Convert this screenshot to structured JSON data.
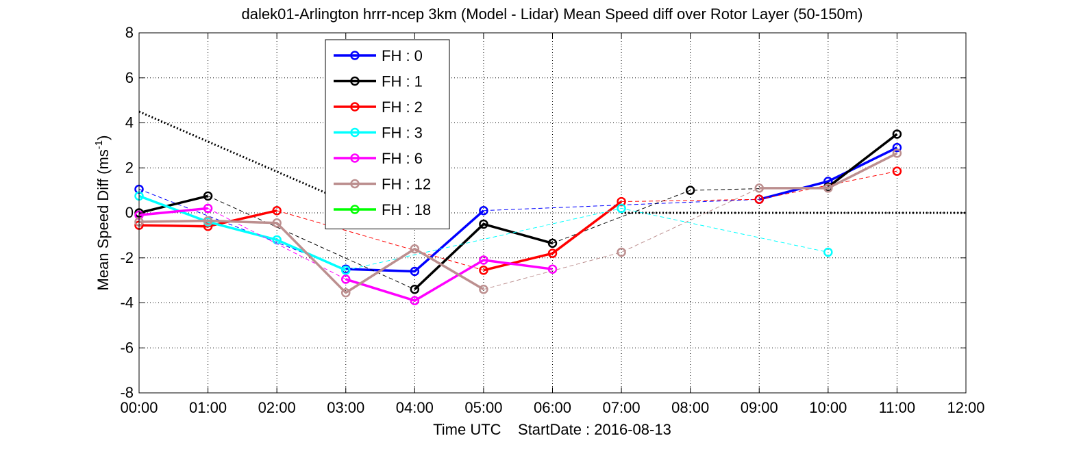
{
  "chart_data": {
    "type": "line",
    "title": "dalek01-Arlington hrrr-ncep 3km (Model - Lidar) Mean Speed diff over Rotor Layer (50-150m)",
    "xlabel": "Time UTC    StartDate : 2016-08-13",
    "ylabel": "Mean Speed Diff (ms",
    "ylabel_sup": "-1",
    "ylabel_close": ")",
    "xlim": [
      0,
      12
    ],
    "ylim": [
      -8,
      8
    ],
    "grid": true,
    "x_ticks": [
      0,
      1,
      2,
      3,
      4,
      5,
      6,
      7,
      8,
      9,
      10,
      11,
      12
    ],
    "x_tick_labels": [
      "00:00",
      "01:00",
      "02:00",
      "03:00",
      "04:00",
      "05:00",
      "06:00",
      "07:00",
      "08:00",
      "09:00",
      "10:00",
      "11:00",
      "12:00"
    ],
    "y_ticks": [
      -8,
      -6,
      -4,
      -2,
      0,
      2,
      4,
      6,
      8
    ],
    "y_tick_labels": [
      "-8",
      "-6",
      "-4",
      "-2",
      "0",
      "2",
      "4",
      "6",
      "8"
    ],
    "legend_position": "top-center",
    "reference_lines": [
      {
        "points": [
          [
            0,
            4.5
          ],
          [
            3.0,
            0.5
          ]
        ],
        "style": "dotted-thick",
        "color": "#000000"
      },
      {
        "points": [
          [
            7.0,
            0
          ],
          [
            12,
            0
          ]
        ],
        "style": "dotted-thick",
        "color": "#000000"
      }
    ],
    "series": [
      {
        "name": "FH : 0",
        "color": "#0000ff",
        "solid": [
          [
            [
              3,
              -2.5
            ],
            [
              4,
              -2.6
            ],
            [
              5,
              0.1
            ]
          ],
          [
            [
              9,
              0.6
            ],
            [
              10,
              1.4
            ],
            [
              11,
              2.9
            ]
          ]
        ],
        "dashed": [
          [
            [
              0,
              1.05
            ],
            [
              3,
              -2.5
            ]
          ],
          [
            [
              5,
              0.1
            ],
            [
              9,
              0.6
            ]
          ]
        ],
        "points": [
          [
            0,
            1.05
          ],
          [
            3,
            -2.5
          ],
          [
            4,
            -2.6
          ],
          [
            5,
            0.1
          ],
          [
            9,
            0.6
          ],
          [
            10,
            1.4
          ],
          [
            11,
            2.9
          ]
        ]
      },
      {
        "name": "FH : 1",
        "color": "#000000",
        "solid": [
          [
            [
              0,
              0.0
            ],
            [
              1,
              0.75
            ]
          ],
          [
            [
              4,
              -3.4
            ],
            [
              5,
              -0.5
            ],
            [
              6,
              -1.35
            ]
          ],
          [
            [
              10,
              1.15
            ],
            [
              11,
              3.5
            ]
          ]
        ],
        "dashed": [
          [
            [
              1,
              0.75
            ],
            [
              4,
              -3.4
            ]
          ],
          [
            [
              6,
              -1.35
            ],
            [
              8,
              1.0
            ],
            [
              10,
              1.15
            ]
          ]
        ],
        "points": [
          [
            0,
            0.0
          ],
          [
            1,
            0.75
          ],
          [
            4,
            -3.4
          ],
          [
            5,
            -0.5
          ],
          [
            6,
            -1.35
          ],
          [
            8,
            1.0
          ],
          [
            10,
            1.15
          ],
          [
            11,
            3.5
          ]
        ]
      },
      {
        "name": "FH : 2",
        "color": "#ff0000",
        "solid": [
          [
            [
              0,
              -0.55
            ],
            [
              1,
              -0.6
            ],
            [
              2,
              0.1
            ]
          ],
          [
            [
              5,
              -2.55
            ],
            [
              6,
              -1.8
            ],
            [
              7,
              0.5
            ]
          ]
        ],
        "dashed": [
          [
            [
              2,
              0.1
            ],
            [
              5,
              -2.55
            ]
          ],
          [
            [
              7,
              0.5
            ],
            [
              9,
              0.6
            ],
            [
              11,
              1.85
            ]
          ]
        ],
        "points": [
          [
            0,
            -0.55
          ],
          [
            1,
            -0.6
          ],
          [
            2,
            0.1
          ],
          [
            5,
            -2.55
          ],
          [
            6,
            -1.8
          ],
          [
            7,
            0.5
          ],
          [
            9,
            0.6
          ],
          [
            11,
            1.85
          ]
        ]
      },
      {
        "name": "FH : 3",
        "color": "#00ffff",
        "solid": [
          [
            [
              0,
              0.75
            ],
            [
              1,
              -0.4
            ],
            [
              2,
              -1.2
            ],
            [
              3,
              -2.55
            ]
          ]
        ],
        "dashed": [
          [
            [
              3,
              -2.55
            ],
            [
              7,
              0.2
            ],
            [
              10,
              -1.75
            ]
          ]
        ],
        "points": [
          [
            0,
            0.75
          ],
          [
            1,
            -0.4
          ],
          [
            2,
            -1.2
          ],
          [
            3,
            -2.55
          ],
          [
            7,
            0.2
          ],
          [
            10,
            -1.75
          ]
        ]
      },
      {
        "name": "FH : 6",
        "color": "#ff00ff",
        "solid": [
          [
            [
              0,
              -0.1
            ],
            [
              1,
              0.2
            ]
          ],
          [
            [
              3,
              -2.95
            ],
            [
              4,
              -3.9
            ],
            [
              5,
              -2.1
            ],
            [
              6,
              -2.5
            ]
          ]
        ],
        "dashed": [
          [
            [
              1,
              0.2
            ],
            [
              3,
              -2.95
            ]
          ]
        ],
        "points": [
          [
            0,
            -0.1
          ],
          [
            1,
            0.2
          ],
          [
            3,
            -2.95
          ],
          [
            4,
            -3.9
          ],
          [
            5,
            -2.1
          ],
          [
            6,
            -2.5
          ]
        ]
      },
      {
        "name": "FH : 12",
        "color": "#bc8f8f",
        "solid": [
          [
            [
              0,
              -0.4
            ],
            [
              1,
              -0.35
            ],
            [
              2,
              -0.45
            ],
            [
              3,
              -3.55
            ],
            [
              4,
              -1.6
            ],
            [
              5,
              -3.4
            ]
          ],
          [
            [
              9,
              1.1
            ],
            [
              10,
              1.1
            ],
            [
              11,
              2.65
            ]
          ]
        ],
        "dashed": [
          [
            [
              5,
              -3.4
            ],
            [
              7,
              -1.75
            ],
            [
              9,
              1.1
            ]
          ]
        ],
        "points": [
          [
            0,
            -0.4
          ],
          [
            1,
            -0.35
          ],
          [
            2,
            -0.45
          ],
          [
            3,
            -3.55
          ],
          [
            4,
            -1.6
          ],
          [
            5,
            -3.4
          ],
          [
            7,
            -1.75
          ],
          [
            9,
            1.1
          ],
          [
            10,
            1.1
          ],
          [
            11,
            2.65
          ]
        ]
      },
      {
        "name": "FH : 18",
        "color": "#00ff00",
        "solid": [],
        "dashed": [],
        "points": []
      }
    ]
  }
}
